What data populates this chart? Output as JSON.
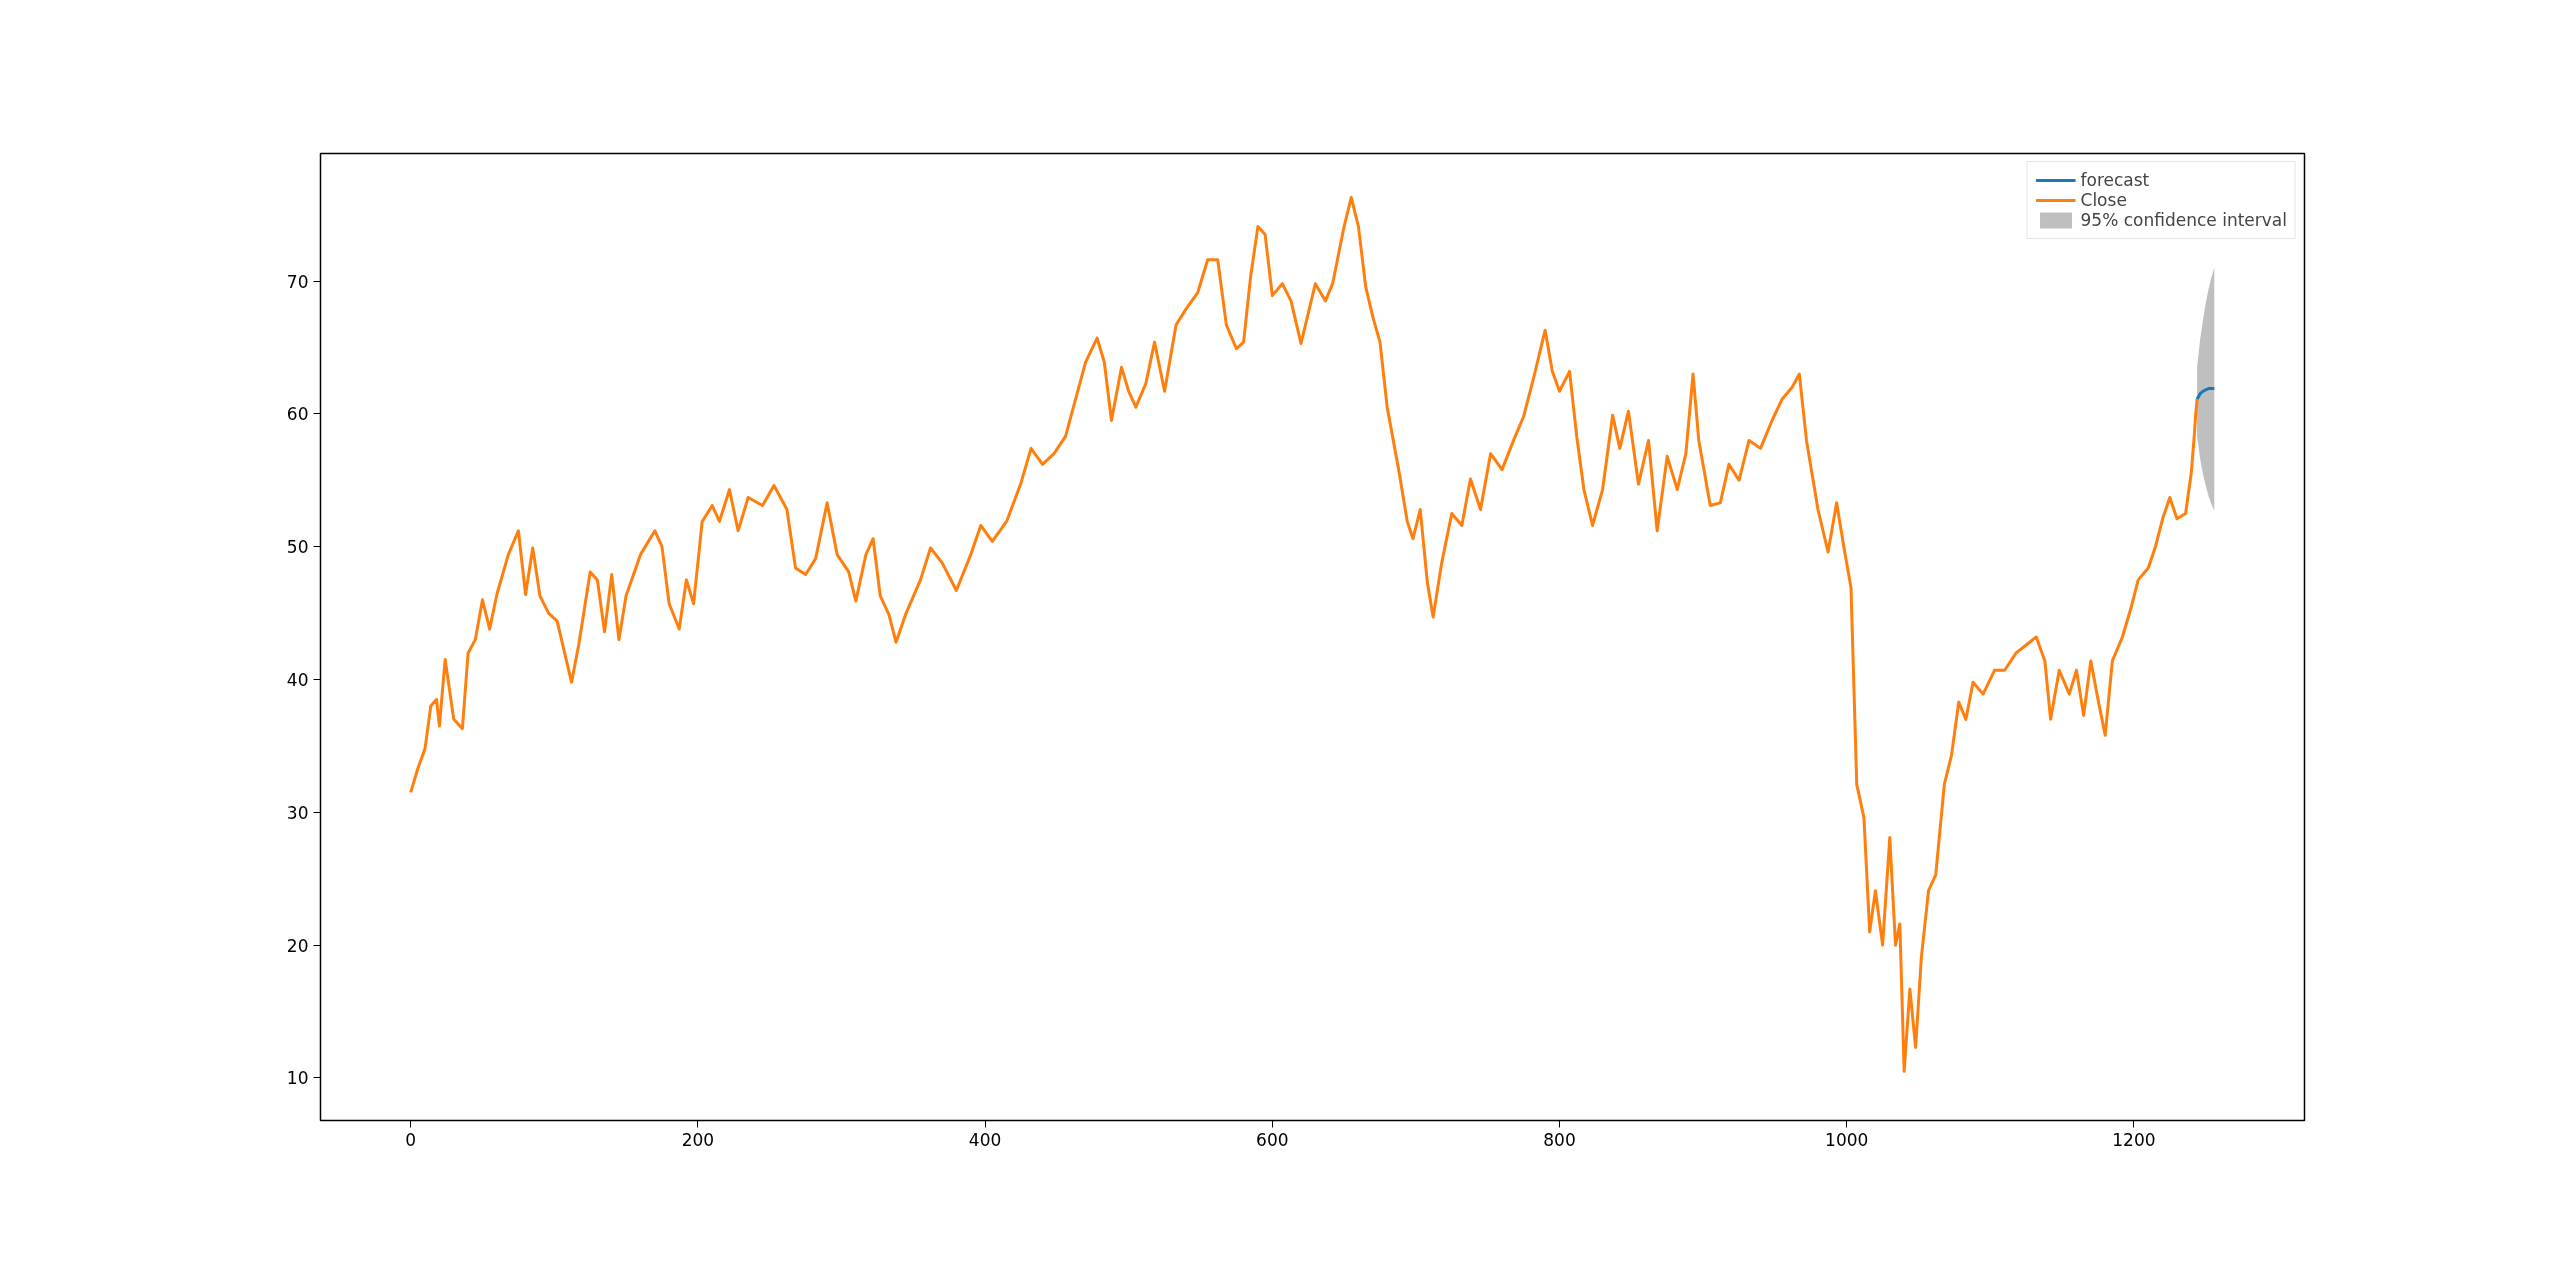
{
  "chart_data": {
    "type": "line",
    "xlim": [
      -62.8,
      1318.8
    ],
    "ylim": [
      6.8,
      79.6
    ],
    "xticks": [
      0,
      200,
      400,
      600,
      800,
      1000,
      1200
    ],
    "yticks": [
      10,
      20,
      30,
      40,
      50,
      60,
      70
    ],
    "grid": false,
    "legend": "top right",
    "line_style": "solid",
    "marker": "none",
    "series": [
      {
        "name": "forecast",
        "color": "#1f77b4",
        "x": [
          1244,
          1246,
          1248,
          1250,
          1252,
          1254,
          1256
        ],
        "values": [
          61.1,
          61.5,
          61.7,
          61.8,
          61.9,
          61.9,
          61.9
        ],
        "lower": [
          58.3,
          56.7,
          55.5,
          54.6,
          53.8,
          53.2,
          52.7
        ],
        "upper": [
          63.5,
          65.5,
          67,
          68.3,
          69.4,
          70.3,
          71
        ]
      },
      {
        "name": "Close",
        "color": "#ff7f0e",
        "x": [
          0,
          5,
          10,
          14,
          18,
          20,
          24,
          30,
          36,
          40,
          45,
          50,
          55,
          60,
          68,
          75,
          80,
          85,
          90,
          96,
          102,
          112,
          117,
          125,
          130,
          135,
          140,
          145,
          150,
          160,
          170,
          175,
          180,
          187,
          192,
          197,
          203,
          210,
          215,
          222,
          228,
          235,
          245,
          253,
          262,
          268,
          275,
          282,
          290,
          297,
          305,
          310,
          317,
          322,
          327,
          333,
          338,
          345,
          355,
          362,
          370,
          380,
          390,
          397,
          405,
          415,
          425,
          432,
          440,
          448,
          456,
          462,
          470,
          478,
          483,
          488,
          495,
          500,
          505,
          512,
          518,
          525,
          533,
          540,
          548,
          555,
          562,
          568,
          575,
          580,
          585,
          590,
          595,
          600,
          607,
          613,
          620,
          630,
          637,
          642,
          650,
          655,
          660,
          665,
          670,
          675,
          680,
          688,
          694,
          698,
          703,
          708,
          712,
          718,
          725,
          732,
          738,
          745,
          752,
          760,
          768,
          775,
          782,
          790,
          795,
          800,
          807,
          812,
          817,
          823,
          830,
          837,
          842,
          848,
          855,
          862,
          868,
          875,
          882,
          888,
          893,
          897,
          905,
          912,
          918,
          925,
          932,
          940,
          948,
          955,
          962,
          967,
          972,
          980,
          987,
          993,
          998,
          1003,
          1007,
          1012,
          1016,
          1020,
          1025,
          1030,
          1034,
          1037,
          1040,
          1044,
          1048,
          1052,
          1057,
          1062,
          1068,
          1073,
          1078,
          1083,
          1088,
          1095,
          1103,
          1110,
          1118,
          1125,
          1132,
          1138,
          1142,
          1148,
          1155,
          1160,
          1165,
          1170,
          1175,
          1180,
          1185,
          1192,
          1198,
          1203,
          1210,
          1215,
          1220,
          1225,
          1230,
          1236,
          1240,
          1242,
          1243,
          1244
        ],
        "values": [
          31.5,
          33.3,
          34.8,
          38,
          38.5,
          36.5,
          41.5,
          37,
          36.3,
          42,
          43,
          46,
          43.8,
          46.4,
          49.4,
          51.2,
          46.4,
          49.9,
          46.3,
          45,
          44.4,
          39.8,
          42.6,
          48.1,
          47.5,
          43.6,
          47.9,
          43,
          46.3,
          49.4,
          51.2,
          50,
          45.7,
          43.8,
          47.5,
          45.7,
          51.9,
          53.1,
          51.9,
          54.3,
          51.2,
          53.7,
          53.1,
          54.6,
          52.8,
          48.4,
          47.9,
          49.1,
          53.3,
          49.4,
          48.1,
          45.9,
          49.4,
          50.6,
          46.3,
          44.9,
          42.8,
          45,
          47.5,
          49.9,
          48.8,
          46.7,
          49.4,
          51.6,
          50.4,
          51.9,
          54.8,
          57.4,
          56.2,
          57,
          58.3,
          60.7,
          63.9,
          65.7,
          63.9,
          59.5,
          63.5,
          61.7,
          60.5,
          62.3,
          65.4,
          61.7,
          66.7,
          67.9,
          69.1,
          71.6,
          71.6,
          66.7,
          64.9,
          65.4,
          70.4,
          74.1,
          73.5,
          68.9,
          69.8,
          68.5,
          65.3,
          69.8,
          68.5,
          69.8,
          74.1,
          76.3,
          74.1,
          69.6,
          67.3,
          65.4,
          60.5,
          55.8,
          51.9,
          50.6,
          52.8,
          47.3,
          44.7,
          48.8,
          52.5,
          51.6,
          55.1,
          52.8,
          57,
          55.8,
          58,
          59.8,
          62.7,
          66.3,
          63.2,
          61.7,
          63.2,
          58.3,
          54.3,
          51.6,
          54.3,
          59.9,
          57.4,
          60.2,
          54.7,
          58,
          51.2,
          56.8,
          54.3,
          57,
          63,
          58,
          53.1,
          53.3,
          56.2,
          55,
          58,
          57.4,
          59.5,
          61.1,
          62,
          63,
          58,
          52.8,
          49.6,
          53.3,
          50,
          46.9,
          32.1,
          29.6,
          21,
          24.1,
          20,
          28.1,
          20,
          21.6,
          10.5,
          16.7,
          12.3,
          19.1,
          24.1,
          25.3,
          32.1,
          34.3,
          38.3,
          37,
          39.8,
          38.9,
          40.7,
          40.7,
          42,
          42.6,
          43.2,
          41.4,
          37,
          40.7,
          38.9,
          40.7,
          37.3,
          41.4,
          38.5,
          35.8,
          41.4,
          43.2,
          45.4,
          47.5,
          48.4,
          50,
          52.1,
          53.7,
          52.1,
          52.5,
          55.6,
          58.3,
          59.9,
          61.1
        ]
      },
      {
        "name": "95% confidence interval",
        "type": "area",
        "color": "#bfbfbf"
      }
    ]
  }
}
